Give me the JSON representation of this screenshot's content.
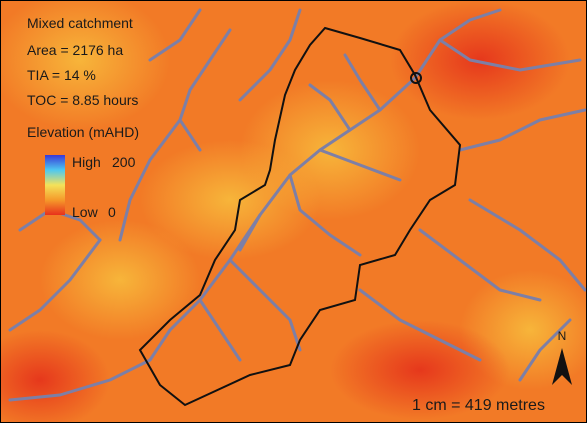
{
  "title": "Mixed catchment",
  "stats": [
    "Area = 2176 ha",
    "TIA = 14 %",
    "TOC = 8.85 hours"
  ],
  "legend": {
    "title": "Elevation (mAHD)",
    "high_label": "High",
    "high_value": "200",
    "low_label": "Low",
    "low_value": "0"
  },
  "north": "N",
  "scale": "1 cm = 419 metres"
}
